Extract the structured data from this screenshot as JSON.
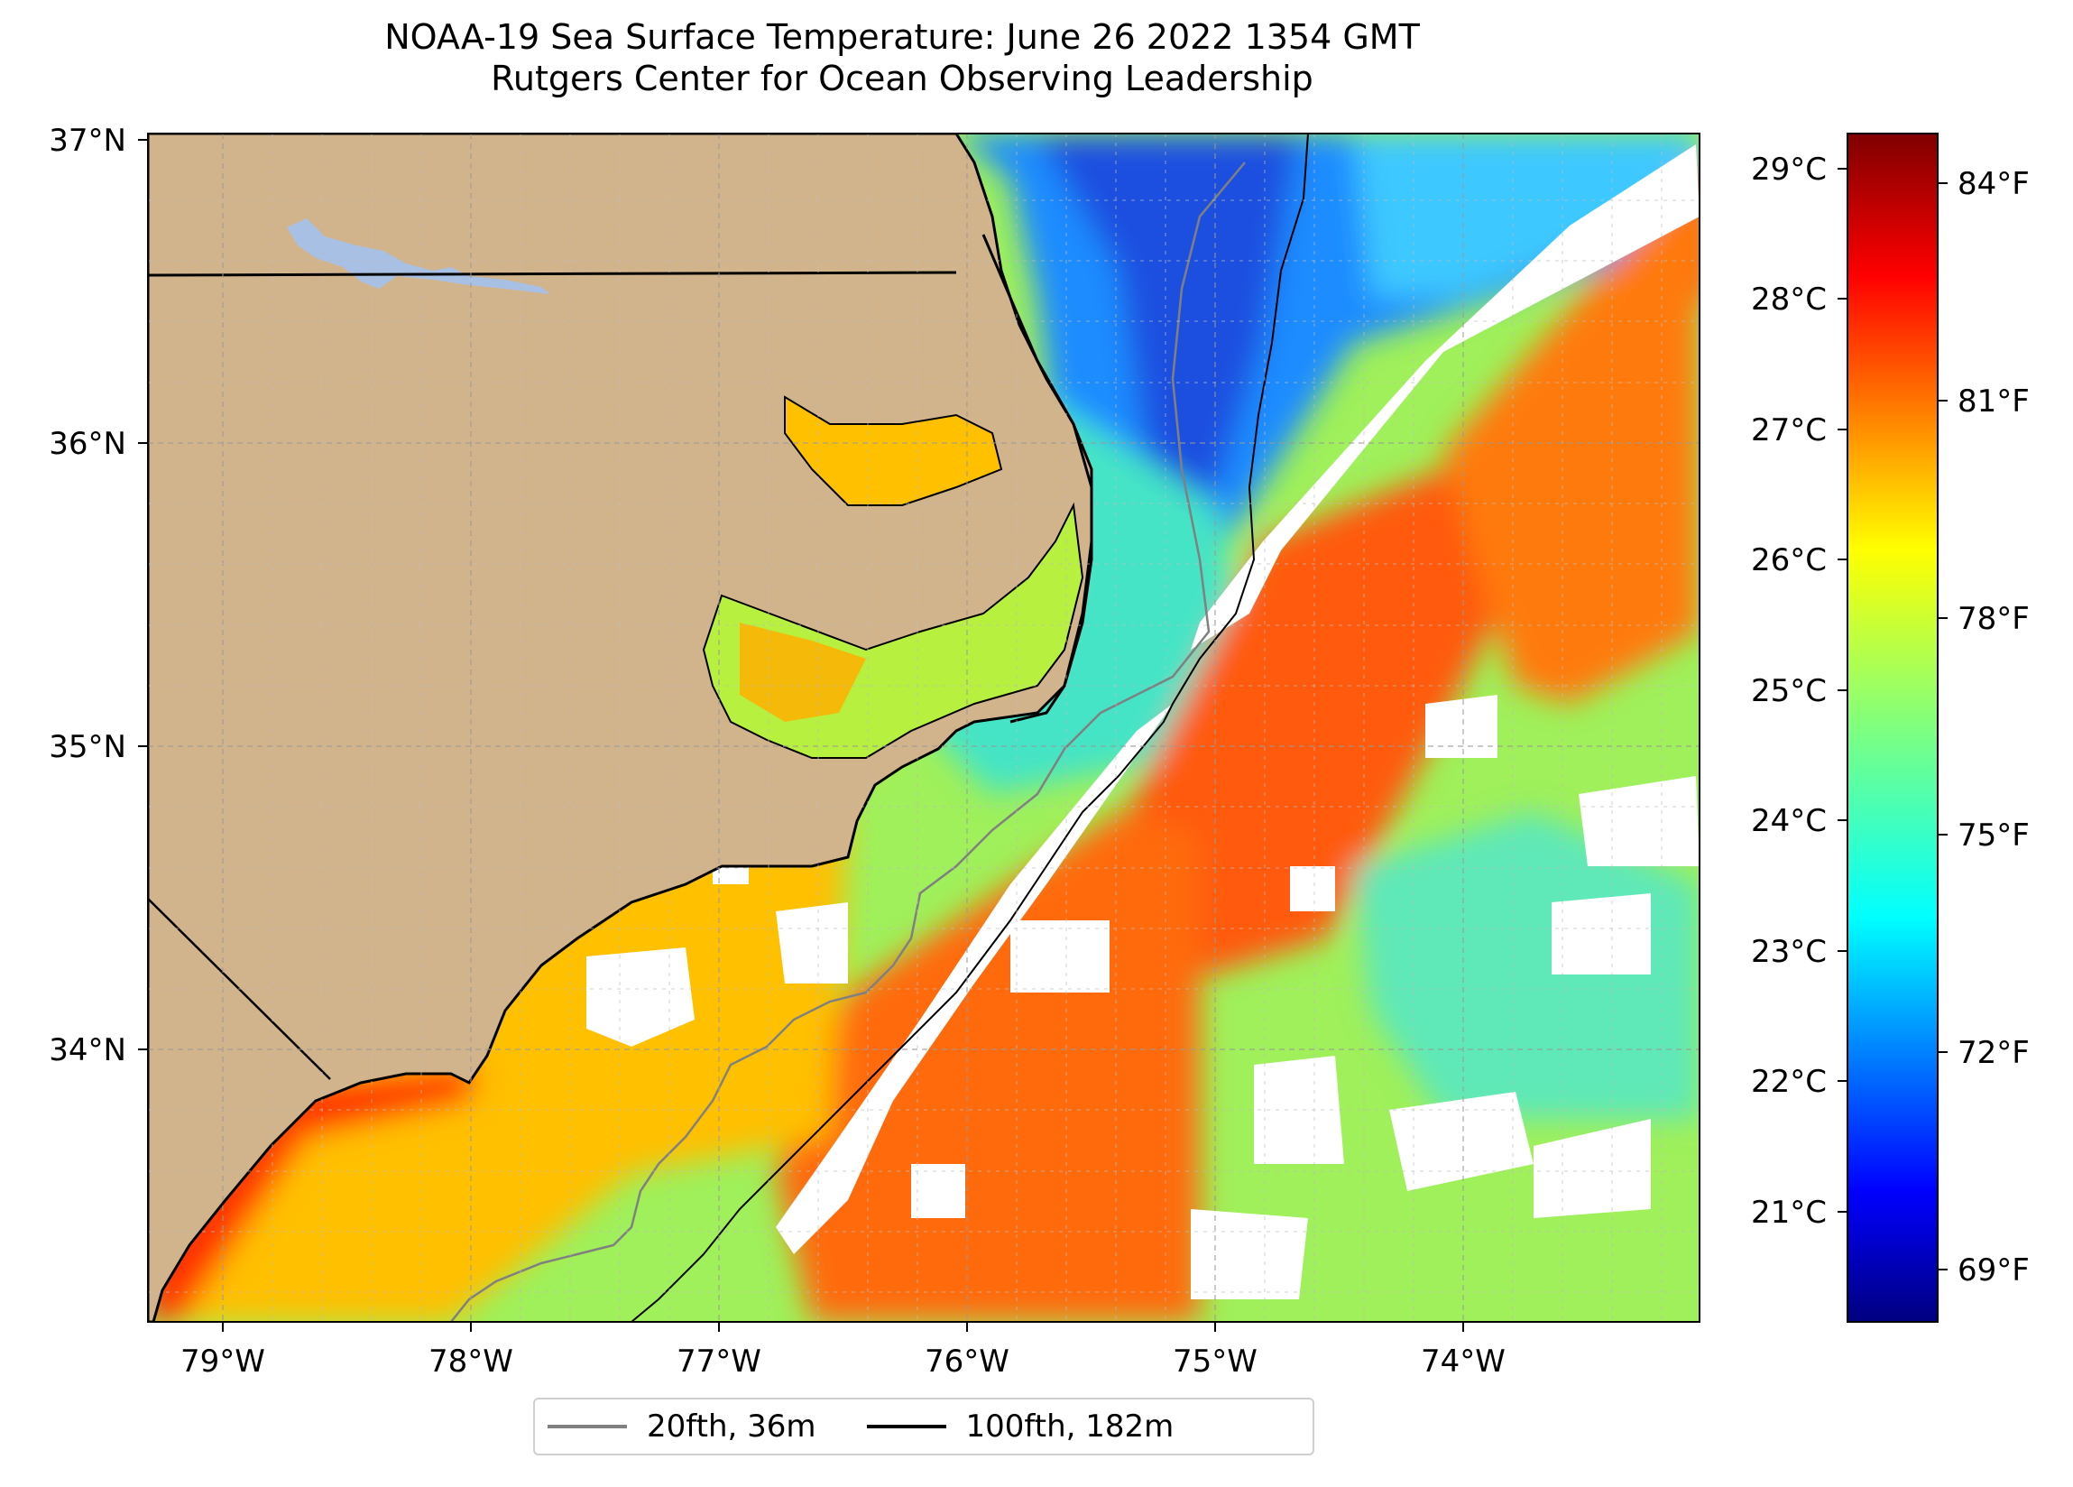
{
  "title": {
    "line1": "NOAA-19 Sea Surface Temperature: June 26 2022 1354 GMT",
    "line2": "Rutgers Center for Ocean Observing Leadership"
  },
  "map": {
    "lat_labels": [
      "37°N",
      "36°N",
      "35°N",
      "34°N"
    ],
    "lon_labels": [
      "79°W",
      "78°W",
      "77°W",
      "76°W",
      "75°W",
      "74°W"
    ],
    "extent": {
      "lon_min": -79.3,
      "lon_max": -73.1,
      "lat_min": 33.1,
      "lat_max": 37.0
    },
    "land_color": "#d2b48c",
    "water_body_color": "#a8c0e4",
    "cloud_mask_color": "#ffffff",
    "gridlines": true
  },
  "colorbar": {
    "celsius_labels": [
      "29°C",
      "28°C",
      "27°C",
      "26°C",
      "25°C",
      "24°C",
      "23°C",
      "22°C",
      "21°C"
    ],
    "fahrenheit_labels": [
      "84°F",
      "81°F",
      "78°F",
      "75°F",
      "72°F",
      "69°F"
    ],
    "colormap": "jet",
    "range_c": [
      20.2,
      29.3
    ]
  },
  "legend": {
    "items": [
      {
        "label": "20fth, 36m",
        "color": "#808080"
      },
      {
        "label": "100fth, 182m",
        "color": "#000000"
      }
    ]
  }
}
